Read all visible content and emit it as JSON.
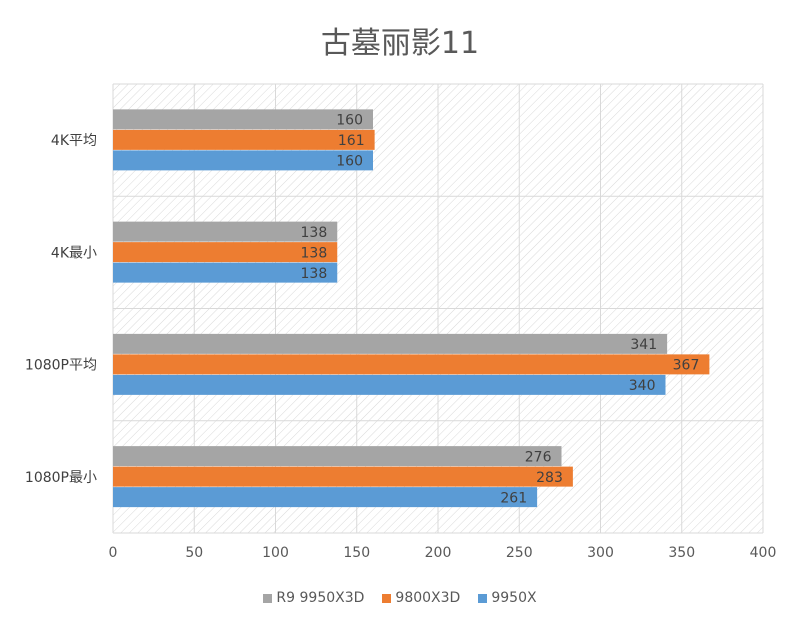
{
  "chart_data": {
    "type": "bar",
    "orientation": "horizontal",
    "title": "古墓丽影11",
    "categories": [
      "4K平均",
      "4K最小",
      "1080P平均",
      "1080P最小"
    ],
    "series": [
      {
        "name": "R9 9950X3D",
        "color": "#a5a5a5",
        "values": [
          160,
          138,
          341,
          276
        ]
      },
      {
        "name": "9800X3D",
        "color": "#ed7d31",
        "values": [
          161,
          138,
          367,
          283
        ]
      },
      {
        "name": "9950X",
        "color": "#5b9bd5",
        "values": [
          160,
          138,
          340,
          261
        ]
      }
    ],
    "xlim": [
      0,
      400
    ],
    "xticks": [
      0,
      50,
      100,
      150,
      200,
      250,
      300,
      350,
      400
    ],
    "grid": true,
    "legend": "bottom",
    "data_labels": true
  }
}
